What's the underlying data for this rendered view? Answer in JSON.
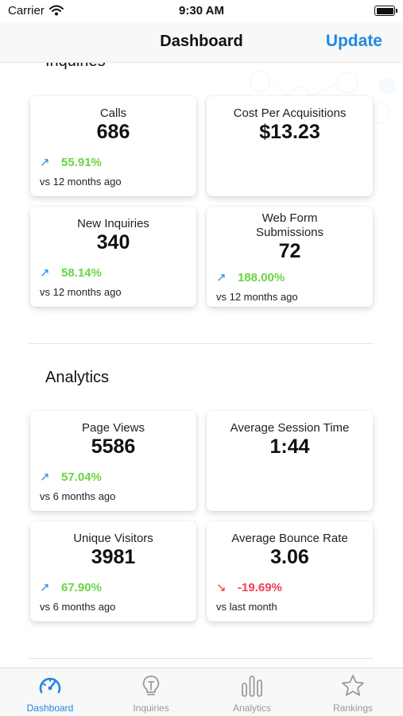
{
  "status_bar": {
    "carrier": "Carrier",
    "time": "9:30 AM"
  },
  "nav": {
    "title": "Dashboard",
    "action": "Update"
  },
  "sections": {
    "inquiries": {
      "title": "Inquiries",
      "cards": [
        {
          "label": "Calls",
          "value": "686",
          "trend": "55.91%",
          "direction": "up",
          "compare": "vs 12 months ago"
        },
        {
          "label": "Cost Per Acquisitions",
          "value": "$13.23"
        },
        {
          "label": "New Inquiries",
          "value": "340",
          "trend": "58.14%",
          "direction": "up",
          "compare": "vs 12 months ago"
        },
        {
          "label": "Web Form Submissions",
          "value": "72",
          "trend": "188.00%",
          "direction": "up",
          "compare": "vs 12 months ago"
        }
      ]
    },
    "analytics": {
      "title": "Analytics",
      "cards": [
        {
          "label": "Page Views",
          "value": "5586",
          "trend": "57.04%",
          "direction": "up",
          "compare": "vs 6 months ago"
        },
        {
          "label": "Average Session Time",
          "value": "1:44"
        },
        {
          "label": "Unique Visitors",
          "value": "3981",
          "trend": "67.90%",
          "direction": "up",
          "compare": "vs 6 months ago"
        },
        {
          "label": "Average Bounce Rate",
          "value": "3.06",
          "trend": "-19.69%",
          "direction": "down",
          "compare": "vs last month"
        }
      ]
    }
  },
  "icons": {
    "trend_up": "↗",
    "trend_down": "↘"
  },
  "tabs": [
    {
      "label": "Dashboard",
      "icon": "speedometer-icon",
      "active": true
    },
    {
      "label": "Inquiries",
      "icon": "lightbulb-icon",
      "active": false
    },
    {
      "label": "Analytics",
      "icon": "bar-chart-icon",
      "active": false
    },
    {
      "label": "Rankings",
      "icon": "star-icon",
      "active": false
    }
  ],
  "colors": {
    "accent": "#1e88e5",
    "positive": "#67d640",
    "negative": "#ee3f53"
  }
}
